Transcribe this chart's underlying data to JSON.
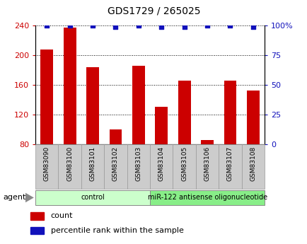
{
  "title": "GDS1729 / 265025",
  "samples": [
    "GSM83090",
    "GSM83100",
    "GSM83101",
    "GSM83102",
    "GSM83103",
    "GSM83104",
    "GSM83105",
    "GSM83106",
    "GSM83107",
    "GSM83108"
  ],
  "counts": [
    208,
    237,
    184,
    100,
    186,
    130,
    166,
    85,
    166,
    152
  ],
  "percentile_ranks": [
    100,
    100,
    100,
    99,
    100,
    99,
    99,
    100,
    100,
    99
  ],
  "bar_color": "#cc0000",
  "dot_color": "#1111bb",
  "ylim_left": [
    80,
    240
  ],
  "ylim_right": [
    0,
    100
  ],
  "yticks_left": [
    80,
    120,
    160,
    200,
    240
  ],
  "yticks_right": [
    0,
    25,
    50,
    75,
    100
  ],
  "yticklabels_right": [
    "0",
    "25",
    "50",
    "75",
    "100%"
  ],
  "grid_yticks": [
    120,
    160,
    200,
    240
  ],
  "groups": [
    {
      "label": "control",
      "start": 0,
      "end": 4,
      "color": "#ccffcc"
    },
    {
      "label": "miR-122 antisense oligonucleotide",
      "start": 5,
      "end": 9,
      "color": "#88ee88"
    }
  ],
  "agent_label": "agent",
  "legend_count_label": "count",
  "legend_percentile_label": "percentile rank within the sample",
  "bar_width": 0.55,
  "xtick_bg_color": "#cccccc",
  "xtick_border_color": "#999999",
  "bar_color_left_axis": "#cc0000",
  "dot_color_right_axis": "#1111bb"
}
